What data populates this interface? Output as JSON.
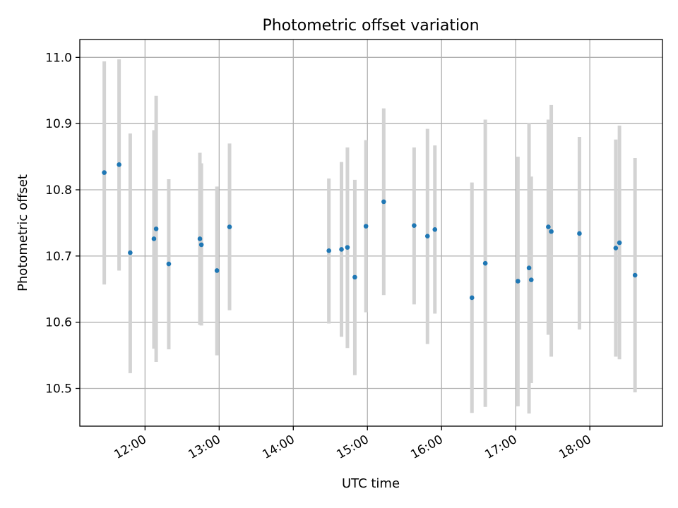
{
  "chart_data": {
    "type": "scatter",
    "title": "Photometric offset variation",
    "xlabel": "UTC time",
    "ylabel": "Photometric offset",
    "grid": true,
    "xlim": [
      11.12,
      18.98
    ],
    "ylim": [
      10.443,
      11.027
    ],
    "x_ticks": [
      {
        "value": 12,
        "label": "12:00"
      },
      {
        "value": 13,
        "label": "13:00"
      },
      {
        "value": 14,
        "label": "14:00"
      },
      {
        "value": 15,
        "label": "15:00"
      },
      {
        "value": 16,
        "label": "16:00"
      },
      {
        "value": 17,
        "label": "17:00"
      },
      {
        "value": 18,
        "label": "18:00"
      }
    ],
    "y_ticks": [
      {
        "value": 10.5,
        "label": "10.5"
      },
      {
        "value": 10.6,
        "label": "10.6"
      },
      {
        "value": 10.7,
        "label": "10.7"
      },
      {
        "value": 10.8,
        "label": "10.8"
      },
      {
        "value": 10.9,
        "label": "10.9"
      },
      {
        "value": 11.0,
        "label": "11.0"
      }
    ],
    "marker_color": "#1f77b4",
    "errorbar_color": "#d3d3d3",
    "points": [
      {
        "time": 11.45,
        "offset": 10.826,
        "low": 10.657,
        "high": 10.994
      },
      {
        "time": 11.65,
        "offset": 10.838,
        "low": 10.678,
        "high": 10.997
      },
      {
        "time": 11.8,
        "offset": 10.705,
        "low": 10.523,
        "high": 10.885
      },
      {
        "time": 12.12,
        "offset": 10.726,
        "low": 10.56,
        "high": 10.89
      },
      {
        "time": 12.15,
        "offset": 10.741,
        "low": 10.54,
        "high": 10.942
      },
      {
        "time": 12.32,
        "offset": 10.688,
        "low": 10.559,
        "high": 10.816
      },
      {
        "time": 12.74,
        "offset": 10.726,
        "low": 10.596,
        "high": 10.856
      },
      {
        "time": 12.76,
        "offset": 10.717,
        "low": 10.595,
        "high": 10.84
      },
      {
        "time": 12.97,
        "offset": 10.678,
        "low": 10.55,
        "high": 10.805
      },
      {
        "time": 13.14,
        "offset": 10.744,
        "low": 10.618,
        "high": 10.87
      },
      {
        "time": 14.48,
        "offset": 10.708,
        "low": 10.598,
        "high": 10.817
      },
      {
        "time": 14.65,
        "offset": 10.71,
        "low": 10.578,
        "high": 10.842
      },
      {
        "time": 14.73,
        "offset": 10.713,
        "low": 10.561,
        "high": 10.864
      },
      {
        "time": 14.83,
        "offset": 10.668,
        "low": 10.52,
        "high": 10.815
      },
      {
        "time": 14.98,
        "offset": 10.745,
        "low": 10.615,
        "high": 10.875
      },
      {
        "time": 15.22,
        "offset": 10.782,
        "low": 10.641,
        "high": 10.923
      },
      {
        "time": 15.63,
        "offset": 10.746,
        "low": 10.627,
        "high": 10.864
      },
      {
        "time": 15.81,
        "offset": 10.73,
        "low": 10.567,
        "high": 10.892
      },
      {
        "time": 15.91,
        "offset": 10.74,
        "low": 10.613,
        "high": 10.867
      },
      {
        "time": 16.41,
        "offset": 10.637,
        "low": 10.463,
        "high": 10.811
      },
      {
        "time": 16.59,
        "offset": 10.689,
        "low": 10.472,
        "high": 10.906
      },
      {
        "time": 17.03,
        "offset": 10.662,
        "low": 10.473,
        "high": 10.85
      },
      {
        "time": 17.18,
        "offset": 10.682,
        "low": 10.462,
        "high": 10.9
      },
      {
        "time": 17.21,
        "offset": 10.664,
        "low": 10.508,
        "high": 10.82
      },
      {
        "time": 17.44,
        "offset": 10.744,
        "low": 10.581,
        "high": 10.906
      },
      {
        "time": 17.48,
        "offset": 10.737,
        "low": 10.548,
        "high": 10.928
      },
      {
        "time": 17.86,
        "offset": 10.734,
        "low": 10.589,
        "high": 10.88
      },
      {
        "time": 18.35,
        "offset": 10.712,
        "low": 10.548,
        "high": 10.876
      },
      {
        "time": 18.4,
        "offset": 10.72,
        "low": 10.544,
        "high": 10.897
      },
      {
        "time": 18.61,
        "offset": 10.671,
        "low": 10.494,
        "high": 10.848
      }
    ]
  }
}
